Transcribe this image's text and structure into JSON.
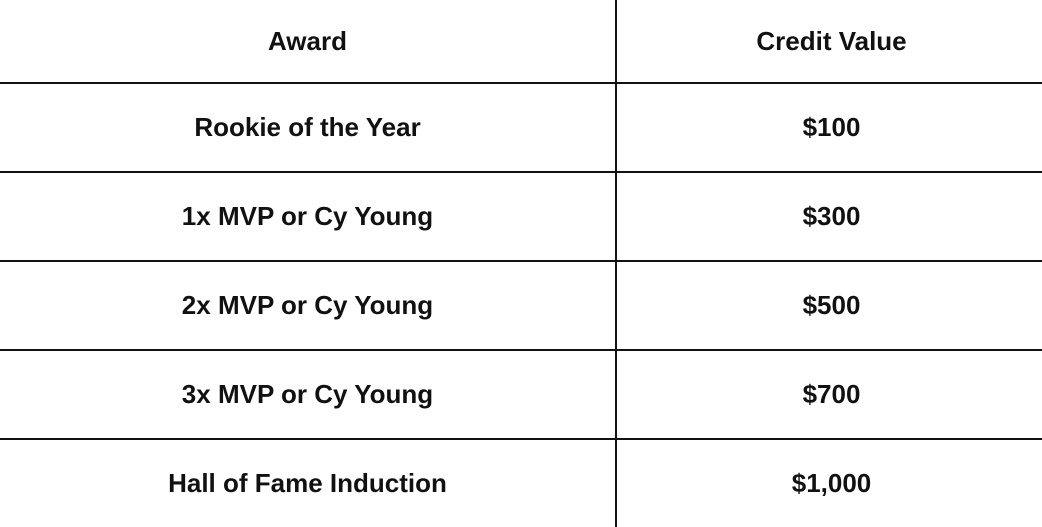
{
  "table": {
    "headers": [
      "Award",
      "Credit Value"
    ],
    "rows": [
      [
        "Rookie of the Year",
        "$100"
      ],
      [
        "1x MVP or Cy Young",
        "$300"
      ],
      [
        "2x MVP or Cy Young",
        "$500"
      ],
      [
        "3x MVP or Cy Young",
        "$700"
      ],
      [
        "Hall of Fame Induction",
        "$1,000"
      ]
    ]
  }
}
